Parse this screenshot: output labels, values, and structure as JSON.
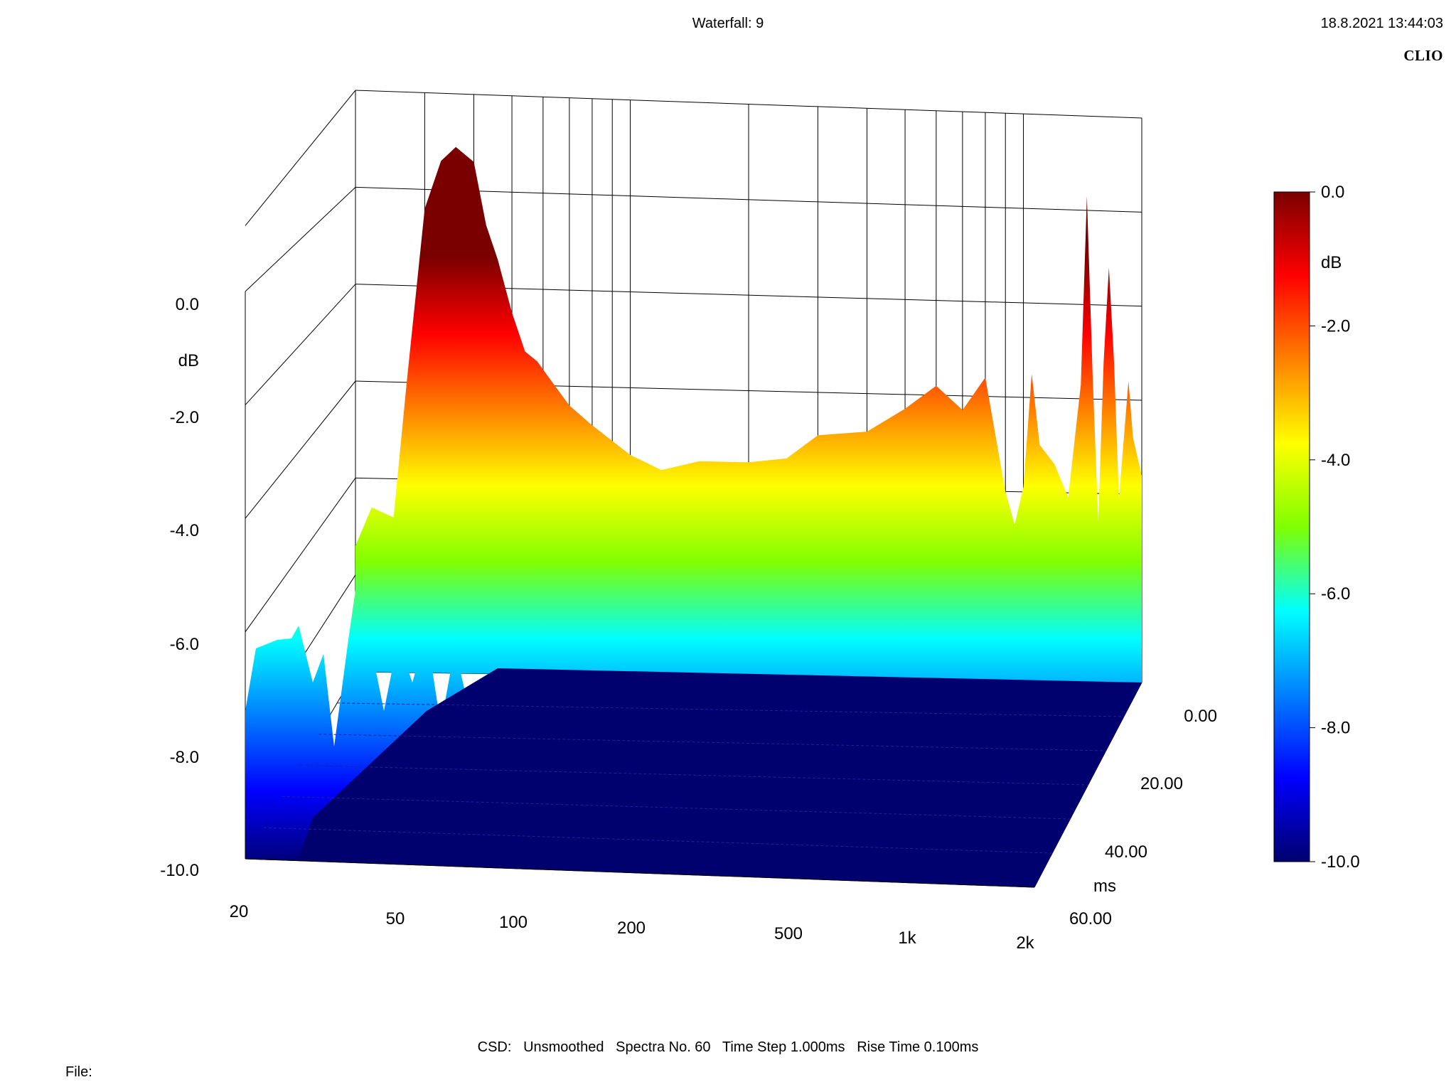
{
  "header": {
    "title": "Waterfall: 9",
    "timestamp": "18.8.2021 13:44:03",
    "brand": "CLIO"
  },
  "footer": {
    "info": "CSD:   Unsmoothed   Spectra No. 60   Time Step 1.000ms   Rise Time 0.100ms",
    "file_label": "File:"
  },
  "colors": {
    "colormap": [
      "#00006e",
      "#0000ff",
      "#0080ff",
      "#00ffff",
      "#80ff00",
      "#ffff00",
      "#ff8000",
      "#ff0000",
      "#7a0000"
    ],
    "grid": "#000000"
  },
  "chart_data": {
    "type": "waterfall",
    "title": "Waterfall: 9",
    "x_axis": {
      "label": "",
      "scale": "log",
      "range": [
        20,
        2000
      ],
      "tick_values": [
        20,
        50,
        100,
        200,
        500,
        1000,
        2000
      ],
      "tick_labels": [
        "20",
        "50",
        "100",
        "200",
        "500",
        "1k",
        "2k"
      ]
    },
    "y_axis": {
      "label": "dB",
      "range": [
        -10.0,
        0.0
      ],
      "tick_values": [
        0,
        -2,
        -4,
        -6,
        -8,
        -10
      ],
      "tick_labels": [
        "0.0",
        "-2.0",
        "-4.0",
        "-6.0",
        "-8.0",
        "-10.0"
      ]
    },
    "z_axis": {
      "label": "ms",
      "range": [
        0,
        60
      ],
      "tick_values": [
        0,
        20,
        40,
        60
      ],
      "tick_labels": [
        "0.00",
        "20.00",
        "40.00",
        "60.00"
      ]
    },
    "colorbar": {
      "label": "dB",
      "range": [
        -10.0,
        0.0
      ],
      "tick_labels": [
        "0.0",
        "-2.0",
        "-4.0",
        "-6.0",
        "-8.0",
        "-10.0"
      ]
    },
    "spectra_count": 60,
    "time_step_ms": 1.0,
    "rise_time_ms": 0.1,
    "front_slice": {
      "time_ms": 0,
      "points": [
        [
          20,
          -7.4
        ],
        [
          22,
          -6.6
        ],
        [
          25,
          -6.8
        ],
        [
          27,
          -4.0
        ],
        [
          30,
          -0.4
        ],
        [
          33,
          0.6
        ],
        [
          36,
          0.9
        ],
        [
          40,
          0.6
        ],
        [
          43,
          -0.7
        ],
        [
          46,
          -1.4
        ],
        [
          50,
          -2.5
        ],
        [
          54,
          -3.3
        ],
        [
          58,
          -3.5
        ],
        [
          63,
          -3.9
        ],
        [
          70,
          -4.4
        ],
        [
          80,
          -4.8
        ],
        [
          100,
          -5.4
        ],
        [
          120,
          -5.7
        ],
        [
          150,
          -5.5
        ],
        [
          200,
          -5.5
        ],
        [
          250,
          -5.4
        ],
        [
          300,
          -4.9
        ],
        [
          400,
          -4.8
        ],
        [
          500,
          -4.3
        ],
        [
          600,
          -3.8
        ],
        [
          700,
          -4.3
        ],
        [
          800,
          -3.6
        ],
        [
          900,
          -6.0
        ],
        [
          950,
          -6.7
        ],
        [
          1000,
          -5.9
        ],
        [
          1050,
          -3.5
        ],
        [
          1100,
          -5.0
        ],
        [
          1200,
          -5.4
        ],
        [
          1300,
          -6.1
        ],
        [
          1400,
          -3.7
        ],
        [
          1450,
          0.3
        ],
        [
          1500,
          -3.5
        ],
        [
          1550,
          -6.6
        ],
        [
          1600,
          -3.2
        ],
        [
          1650,
          -1.2
        ],
        [
          1700,
          -3.2
        ],
        [
          1750,
          -6.1
        ],
        [
          1850,
          -3.6
        ],
        [
          1900,
          -4.8
        ],
        [
          2000,
          -5.6
        ]
      ]
    },
    "peaks": [
      {
        "frequency_hz": 35,
        "level_db": 0.9
      },
      {
        "frequency_hz": 1450,
        "level_db": 0.3
      },
      {
        "frequency_hz": 1650,
        "level_db": -1.2
      }
    ]
  }
}
